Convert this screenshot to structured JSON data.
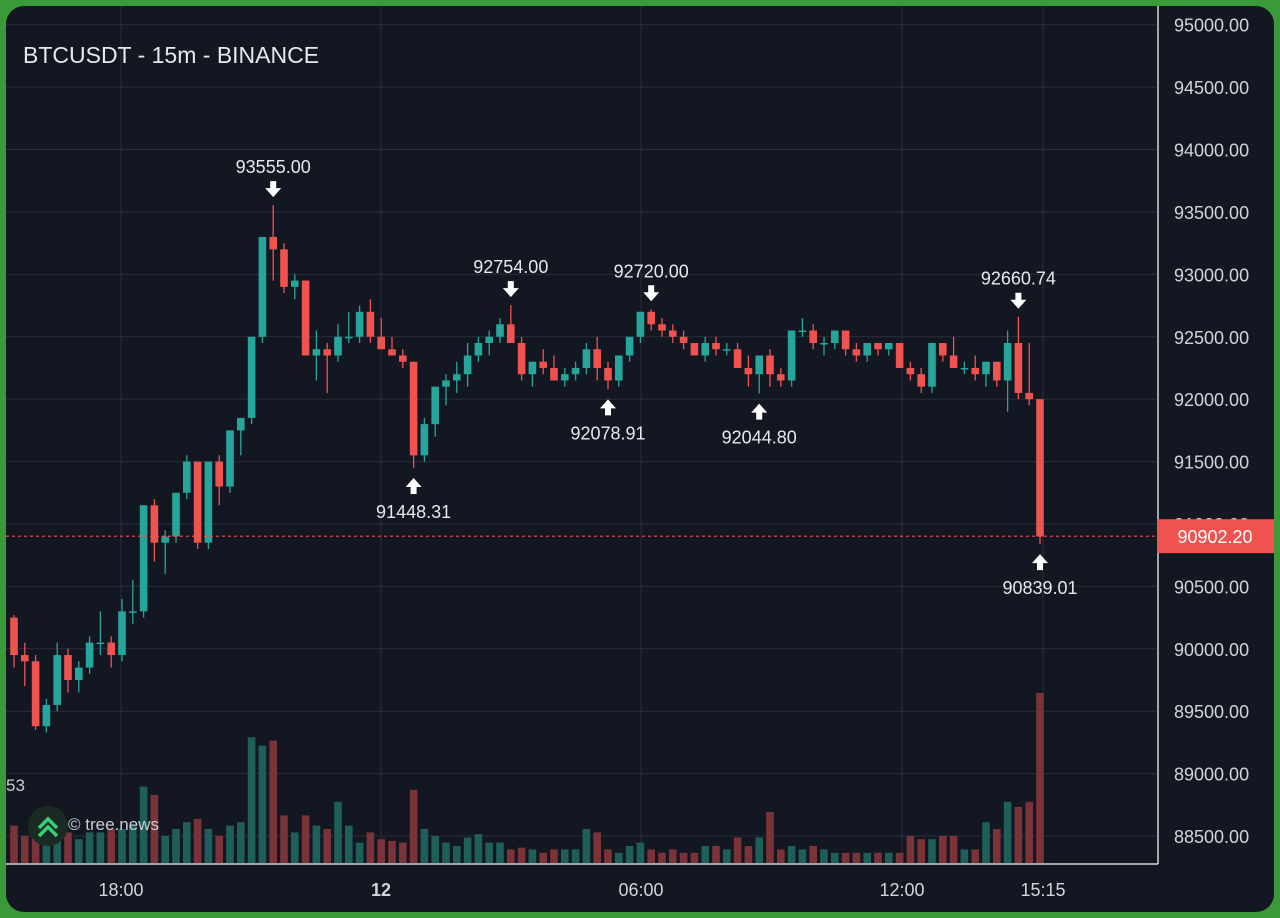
{
  "header": {
    "title": "BTCUSDT - 15m - BINANCE"
  },
  "watermark": {
    "logo_icon": "tree-news-logo-icon",
    "text": "© tree.news"
  },
  "volume_label_partial": "53",
  "colors": {
    "up": "#26a69a",
    "down": "#ef5350",
    "background": "#131722",
    "grid": "#2a2e39",
    "frame": "#3a9a3a",
    "last_price_bg": "#f05350"
  },
  "chart_data": {
    "type": "candlestick",
    "symbol": "BTCUSDT",
    "interval": "15m",
    "exchange": "BINANCE",
    "x_axis": {
      "ticks": [
        "18:00",
        "12",
        "06:00",
        "12:00",
        "15:15"
      ],
      "bold_ticks": [
        "12"
      ]
    },
    "y_axis": {
      "range": [
        88300,
        95150
      ],
      "ticks": [
        "95000.00",
        "94500.00",
        "94000.00",
        "93500.00",
        "93000.00",
        "92500.00",
        "92000.00",
        "91500.00",
        "91000.00",
        "90500.00",
        "90000.00",
        "89500.00",
        "89000.00",
        "88500.00"
      ]
    },
    "grid": true,
    "last_price": {
      "value": 90902.2,
      "label": "90902.20"
    },
    "annotations": [
      {
        "label": "93555.00",
        "value": 93555.0,
        "direction": "down",
        "candle": 24
      },
      {
        "label": "91448.31",
        "value": 91448.31,
        "direction": "up",
        "candle": 37
      },
      {
        "label": "92754.00",
        "value": 92754.0,
        "direction": "down",
        "candle": 46
      },
      {
        "label": "92078.91",
        "value": 92078.91,
        "direction": "up",
        "candle": 55
      },
      {
        "label": "92720.00",
        "value": 92720.0,
        "direction": "down",
        "candle": 59
      },
      {
        "label": "92044.80",
        "value": 92044.8,
        "direction": "up",
        "candle": 69
      },
      {
        "label": "92660.74",
        "value": 92660.74,
        "direction": "down",
        "candle": 93
      },
      {
        "label": "90839.01",
        "value": 90839.01,
        "direction": "up",
        "candle": 95
      }
    ],
    "candles": [
      [
        90250,
        90270,
        89850,
        89950,
        0.22
      ],
      [
        89950,
        90050,
        89700,
        89900,
        0.16
      ],
      [
        89900,
        89950,
        89350,
        89380,
        0.24
      ],
      [
        89380,
        89600,
        89330,
        89550,
        0.18
      ],
      [
        89550,
        90050,
        89500,
        89950,
        0.27
      ],
      [
        89950,
        90000,
        89650,
        89750,
        0.18
      ],
      [
        89750,
        89900,
        89650,
        89850,
        0.14
      ],
      [
        89850,
        90100,
        89800,
        90050,
        0.18
      ],
      [
        90050,
        90300,
        89950,
        90050,
        0.18
      ],
      [
        90050,
        90100,
        89850,
        89950,
        0.2
      ],
      [
        89950,
        90400,
        89900,
        90300,
        0.2
      ],
      [
        90300,
        90550,
        90200,
        90300,
        0.22
      ],
      [
        90300,
        91150,
        90250,
        91150,
        0.45
      ],
      [
        91150,
        91200,
        90700,
        90850,
        0.4
      ],
      [
        90850,
        90950,
        90600,
        90900,
        0.16
      ],
      [
        90900,
        91250,
        90850,
        91250,
        0.2
      ],
      [
        91250,
        91550,
        91200,
        91500,
        0.24
      ],
      [
        91500,
        91500,
        90800,
        90850,
        0.26
      ],
      [
        90850,
        91500,
        90800,
        91500,
        0.2
      ],
      [
        91500,
        91550,
        91150,
        91300,
        0.16
      ],
      [
        91300,
        91750,
        91250,
        91750,
        0.22
      ],
      [
        91750,
        91850,
        91550,
        91850,
        0.24
      ],
      [
        91850,
        92500,
        91800,
        92500,
        0.74
      ],
      [
        92500,
        93300,
        92450,
        93300,
        0.69
      ],
      [
        93300,
        93555,
        92950,
        93200,
        0.72
      ],
      [
        93200,
        93250,
        92850,
        92900,
        0.28
      ],
      [
        92900,
        93000,
        92800,
        92950,
        0.18
      ],
      [
        92950,
        92950,
        92350,
        92350,
        0.28
      ],
      [
        92350,
        92550,
        92150,
        92400,
        0.22
      ],
      [
        92400,
        92450,
        92050,
        92350,
        0.2
      ],
      [
        92350,
        92600,
        92300,
        92500,
        0.36
      ],
      [
        92500,
        92700,
        92450,
        92500,
        0.22
      ],
      [
        92500,
        92750,
        92450,
        92700,
        0.12
      ],
      [
        92700,
        92800,
        92450,
        92500,
        0.18
      ],
      [
        92500,
        92650,
        92400,
        92400,
        0.14
      ],
      [
        92400,
        92500,
        92350,
        92350,
        0.13
      ],
      [
        92350,
        92400,
        92250,
        92300,
        0.12
      ],
      [
        92300,
        92300,
        91450,
        91550,
        0.43
      ],
      [
        91550,
        91850,
        91500,
        91800,
        0.2
      ],
      [
        91800,
        92100,
        91700,
        92100,
        0.16
      ],
      [
        92100,
        92200,
        91950,
        92150,
        0.12
      ],
      [
        92150,
        92300,
        92050,
        92200,
        0.1
      ],
      [
        92200,
        92450,
        92100,
        92350,
        0.15
      ],
      [
        92350,
        92500,
        92300,
        92450,
        0.17
      ],
      [
        92450,
        92550,
        92350,
        92500,
        0.12
      ],
      [
        92500,
        92650,
        92450,
        92600,
        0.12
      ],
      [
        92600,
        92754,
        92450,
        92450,
        0.08
      ],
      [
        92450,
        92500,
        92150,
        92200,
        0.09
      ],
      [
        92200,
        92300,
        92100,
        92300,
        0.08
      ],
      [
        92300,
        92400,
        92200,
        92250,
        0.06
      ],
      [
        92250,
        92350,
        92150,
        92150,
        0.08
      ],
      [
        92150,
        92250,
        92100,
        92200,
        0.08
      ],
      [
        92200,
        92300,
        92150,
        92250,
        0.08
      ],
      [
        92250,
        92450,
        92200,
        92400,
        0.2
      ],
      [
        92400,
        92500,
        92150,
        92250,
        0.18
      ],
      [
        92250,
        92300,
        92079,
        92150,
        0.08
      ],
      [
        92150,
        92350,
        92100,
        92350,
        0.06
      ],
      [
        92350,
        92450,
        92300,
        92500,
        0.1
      ],
      [
        92500,
        92700,
        92450,
        92700,
        0.12
      ],
      [
        92700,
        92720,
        92550,
        92600,
        0.08
      ],
      [
        92600,
        92650,
        92500,
        92550,
        0.06
      ],
      [
        92550,
        92600,
        92450,
        92500,
        0.08
      ],
      [
        92500,
        92550,
        92400,
        92450,
        0.06
      ],
      [
        92450,
        92450,
        92350,
        92350,
        0.06
      ],
      [
        92350,
        92500,
        92300,
        92450,
        0.1
      ],
      [
        92450,
        92500,
        92350,
        92400,
        0.1
      ],
      [
        92400,
        92450,
        92350,
        92400,
        0.08
      ],
      [
        92400,
        92450,
        92250,
        92250,
        0.15
      ],
      [
        92250,
        92350,
        92100,
        92200,
        0.1
      ],
      [
        92200,
        92350,
        92045,
        92350,
        0.15
      ],
      [
        92350,
        92400,
        92100,
        92200,
        0.3
      ],
      [
        92200,
        92250,
        92100,
        92150,
        0.08
      ],
      [
        92150,
        92550,
        92100,
        92550,
        0.1
      ],
      [
        92550,
        92650,
        92500,
        92550,
        0.08
      ],
      [
        92550,
        92600,
        92400,
        92450,
        0.1
      ],
      [
        92450,
        92500,
        92350,
        92450,
        0.08
      ],
      [
        92450,
        92550,
        92400,
        92550,
        0.06
      ],
      [
        92550,
        92550,
        92350,
        92400,
        0.06
      ],
      [
        92400,
        92450,
        92300,
        92350,
        0.06
      ],
      [
        92350,
        92450,
        92300,
        92450,
        0.06
      ],
      [
        92450,
        92450,
        92350,
        92400,
        0.06
      ],
      [
        92400,
        92450,
        92350,
        92450,
        0.06
      ],
      [
        92450,
        92450,
        92250,
        92250,
        0.06
      ],
      [
        92250,
        92300,
        92150,
        92200,
        0.16
      ],
      [
        92200,
        92250,
        92050,
        92100,
        0.14
      ],
      [
        92100,
        92450,
        92050,
        92450,
        0.14
      ],
      [
        92450,
        92450,
        92300,
        92350,
        0.16
      ],
      [
        92350,
        92500,
        92250,
        92250,
        0.16
      ],
      [
        92250,
        92300,
        92200,
        92250,
        0.08
      ],
      [
        92250,
        92350,
        92150,
        92200,
        0.08
      ],
      [
        92200,
        92300,
        92100,
        92300,
        0.24
      ],
      [
        92300,
        92300,
        92100,
        92150,
        0.2
      ],
      [
        92150,
        92550,
        91900,
        92450,
        0.36
      ],
      [
        92450,
        92661,
        92000,
        92050,
        0.33
      ],
      [
        92050,
        92450,
        91950,
        92000,
        0.36
      ],
      [
        92000,
        92000,
        90839,
        90900,
        1.0
      ]
    ],
    "volume_axis": {
      "max": 1.0,
      "unit": "relative"
    }
  }
}
